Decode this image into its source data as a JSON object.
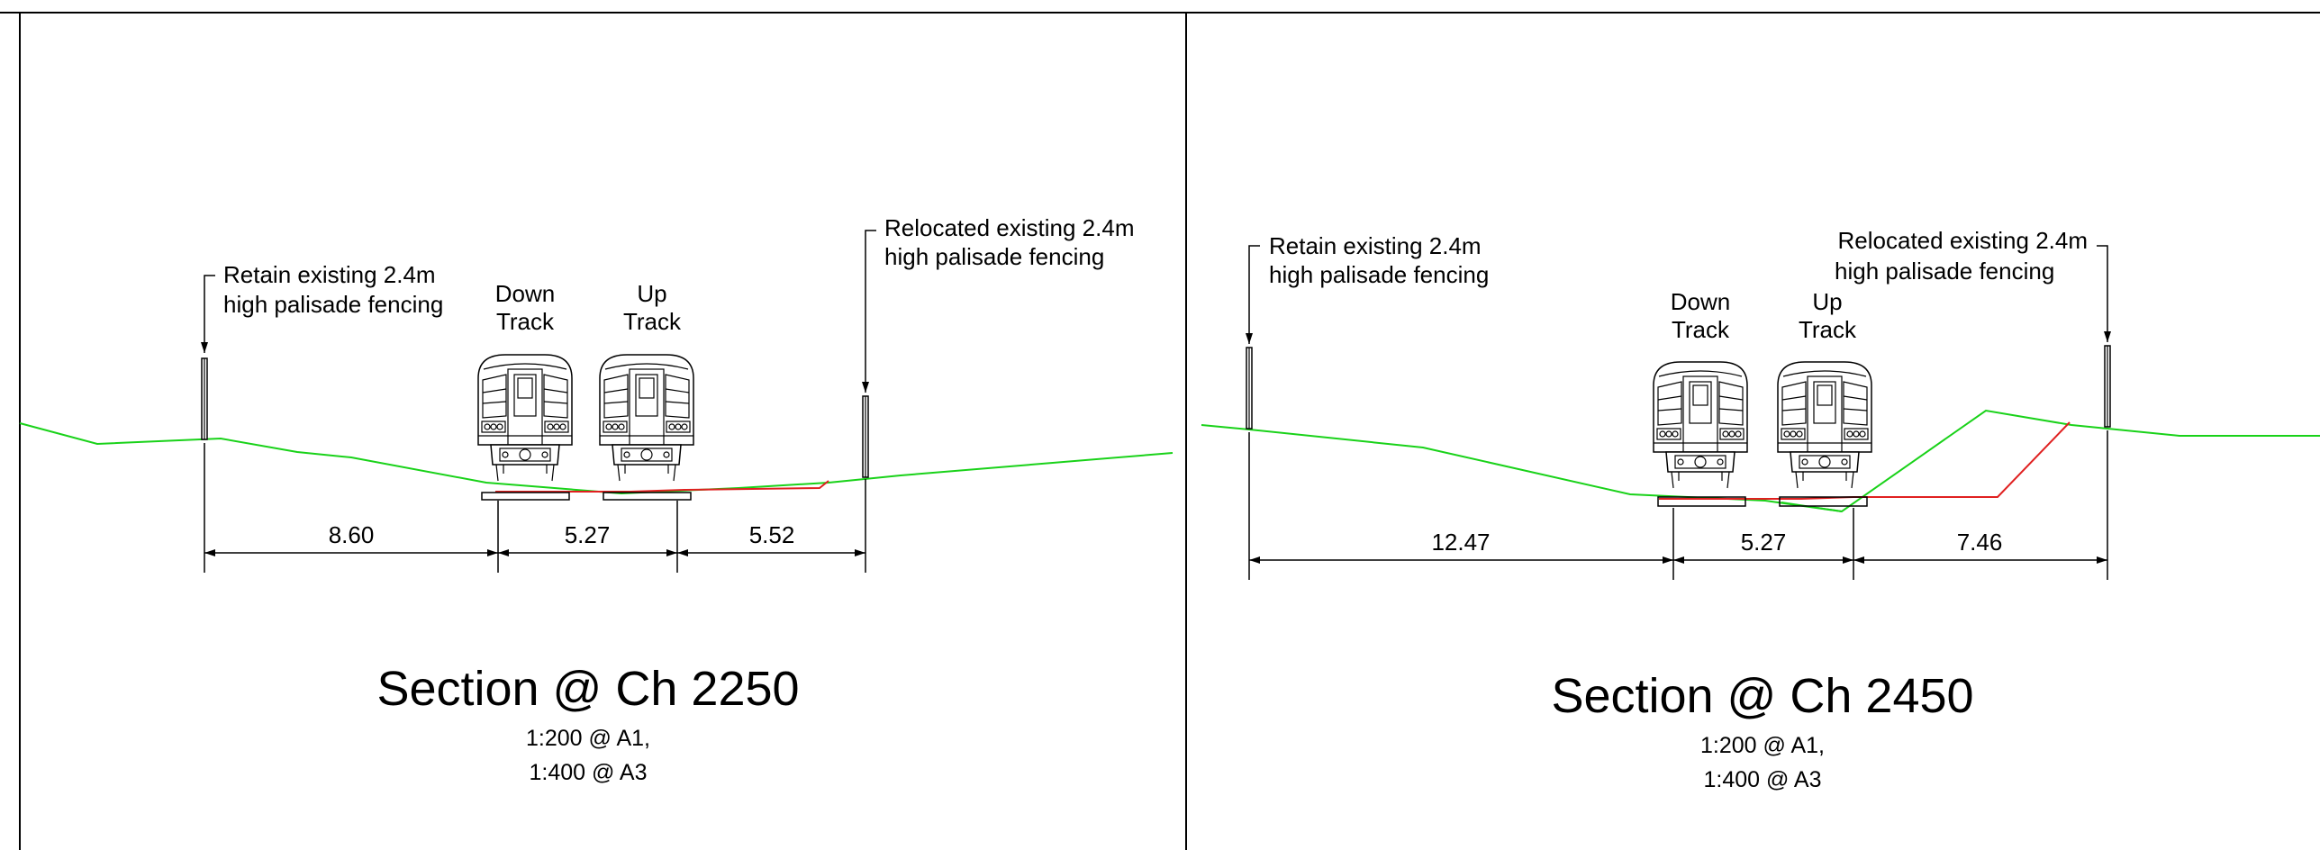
{
  "sections": [
    {
      "title": "Section @ Ch 2250",
      "scale_line1": "1:200 @ A1,",
      "scale_line2": "1:400 @ A3",
      "left_note_line1": "Retain existing 2.4m",
      "left_note_line2": "high palisade fencing",
      "right_note_line1": "Relocated existing 2.4m",
      "right_note_line2": "high palisade fencing",
      "down_track_line1": "Down",
      "down_track_line2": "Track",
      "up_track_line1": "Up",
      "up_track_line2": "Track",
      "dimensions": [
        "8.60",
        "5.27",
        "5.52"
      ]
    },
    {
      "title": "Section @ Ch 2450",
      "scale_line1": "1:200 @ A1,",
      "scale_line2": "1:400 @ A3",
      "left_note_line1": "Retain existing 2.4m",
      "left_note_line2": "high palisade fencing",
      "right_note_line1": "Relocated existing 2.4m",
      "right_note_line2": "high palisade fencing",
      "down_track_line1": "Down",
      "down_track_line2": "Track",
      "up_track_line1": "Up",
      "up_track_line2": "Track",
      "dimensions": [
        "12.47",
        "5.27",
        "7.46"
      ]
    }
  ],
  "colors": {
    "existing_ground": "#19d219",
    "proposed_formation": "#e02020",
    "linework": "#000000"
  }
}
